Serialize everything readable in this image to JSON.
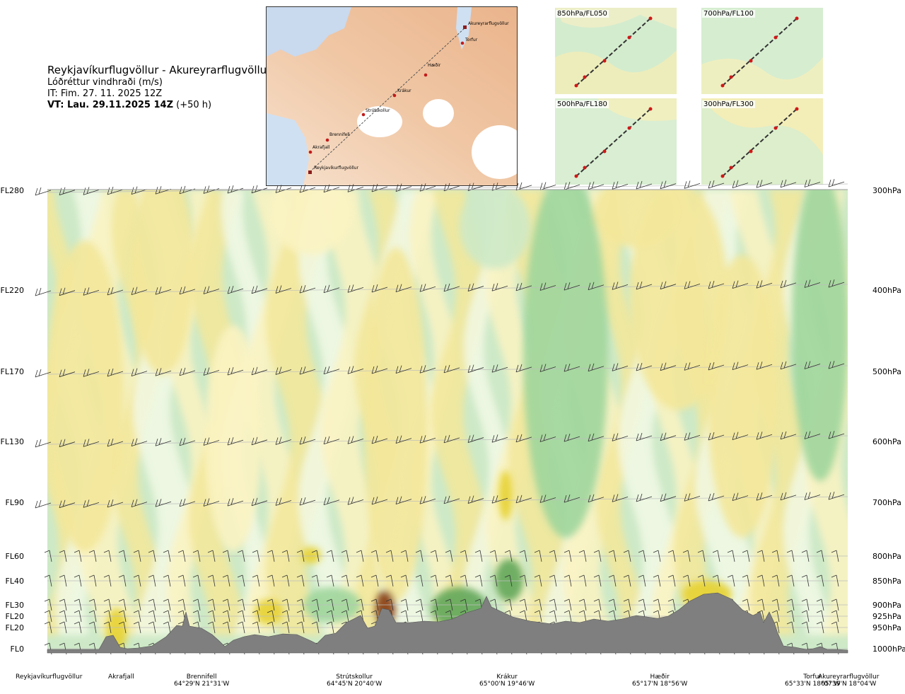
{
  "title": {
    "route": "Reykjavíkurflugvöllur - Akureyrarflugvöllur",
    "variable": "Lóðréttur vindhraði (m/s)",
    "it": "IT: Fim. 27. 11. 2025 12Z",
    "vt_bold": "VT: Lau. 29.11.2025 14Z",
    "vt_lead": "(+50 h)"
  },
  "map": {
    "stations": [
      "Akureyrarflugvöllur",
      "Torfur",
      "Hæðir",
      "Krákur",
      "Strútskollur",
      "Brennifell",
      "Akrafjall",
      "Reykjavíkurflugvöllur"
    ]
  },
  "mini_maps": [
    {
      "label": "850hPa/FL050"
    },
    {
      "label": "700hPa/FL100"
    },
    {
      "label": "500hPa/FL180"
    },
    {
      "label": "300hPa/FL300"
    }
  ],
  "chart_data": {
    "type": "heatmap",
    "quantity": "Lóðréttur vindhraði (m/s)",
    "left_axis_flight_levels": [
      "FL280",
      "FL220",
      "FL170",
      "FL130",
      "FL90",
      "FL60",
      "FL40",
      "FL30",
      "FL20",
      "FL20",
      "FL0"
    ],
    "right_axis_pressure_levels": [
      "300hPa",
      "400hPa",
      "500hPa",
      "600hPa",
      "700hPa",
      "800hPa",
      "850hPa",
      "900hPa",
      "925hPa",
      "950hPa",
      "1000hPa"
    ],
    "pressure_hpa": [
      300,
      400,
      500,
      600,
      700,
      800,
      850,
      900,
      925,
      950,
      1000
    ],
    "route_points": [
      {
        "name": "Reykjavíkurflugvöllur",
        "coord": ""
      },
      {
        "name": "Akrafjall",
        "coord": ""
      },
      {
        "name": "Brennifell",
        "coord": "64°29'N 21°31'W"
      },
      {
        "name": "Strútskollur",
        "coord": "64°45'N 20°40'W"
      },
      {
        "name": "Krákur",
        "coord": "65°00'N 19°46'W"
      },
      {
        "name": "Hæðir",
        "coord": "65°17'N 18°56'W"
      },
      {
        "name": "Torfur",
        "coord": "65°33'N 18°07'W"
      },
      {
        "name": "Akureyrarflugvöllur",
        "coord": "65°39'N 18°04'W"
      }
    ],
    "colors": {
      "strong_up": "#5fa65a",
      "up": "#9fd59b",
      "weak_up": "#cde9c7",
      "near_zero": "#f2f9e6",
      "weak_down": "#fbf3c2",
      "down": "#f3e79a",
      "strong_down": "#e7d230",
      "very_strong_down": "#8a3a0a",
      "terrain": "#7f7f7f"
    }
  }
}
